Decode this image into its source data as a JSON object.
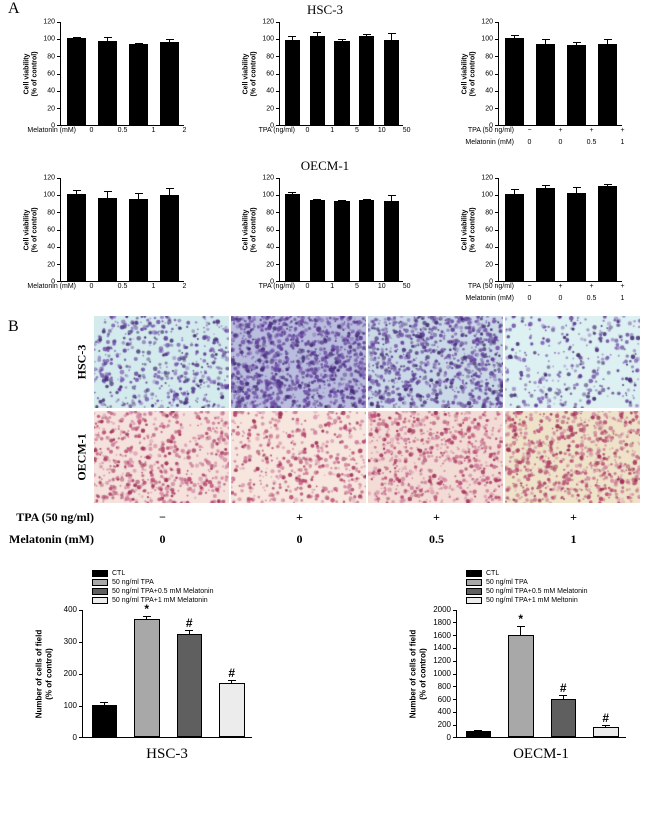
{
  "figure": {
    "panel_a_label": "A",
    "panel_b_label": "B",
    "hsc3_title": "HSC-3",
    "oecm1_title": "OECM-1"
  },
  "panel_b": {
    "row_labels": [
      "HSC-3",
      "OECM-1"
    ],
    "tpa_row": {
      "label": "TPA (50 ng/ml)",
      "cells": [
        "−",
        "+",
        "+",
        "+"
      ]
    },
    "melatonin_row": {
      "label": "Melatonin (mM)",
      "cells": [
        "0",
        "0",
        "0.5",
        "1"
      ]
    }
  },
  "micrographs": {
    "rows": [
      {
        "name": "HSC-3",
        "dot_colors": [
          "#5c3a96",
          "#7a57b0",
          "#3f2a6e"
        ],
        "cells": [
          {
            "bg": "#d4ebee",
            "count": 520
          },
          {
            "bg": "#cfd9ee",
            "count": 1150,
            "overlay": "rgba(90,60,150,0.18)"
          },
          {
            "bg": "#d4e7ee",
            "count": 920,
            "overlay": "rgba(90,60,150,0.08)"
          },
          {
            "bg": "#ddf0f2",
            "count": 330
          }
        ]
      },
      {
        "name": "OECM-1",
        "dot_colors": [
          "#b9476f",
          "#a03358",
          "#d084a0"
        ],
        "cells": [
          {
            "bg": "#f5e2dc",
            "count": 620
          },
          {
            "bg": "#f7e6de",
            "count": 480
          },
          {
            "bg": "#f3dcd6",
            "count": 660
          },
          {
            "bg": "#eee3c8",
            "count": 730
          }
        ]
      }
    ]
  },
  "chart_data": [
    {
      "id": "hsc3-melatonin-viability",
      "type": "bar",
      "group": "HSC-3",
      "ylabel": "Cell viability\n(% of control)",
      "ylim": [
        0,
        120
      ],
      "ystep": 20,
      "values": [
        100,
        97,
        93,
        96
      ],
      "errors": [
        2,
        5,
        2,
        3
      ],
      "bar_color": "#000000",
      "xrows": [
        {
          "label": "Melatonin (mM)",
          "cells": [
            "0",
            "0.5",
            "1",
            "2"
          ]
        }
      ]
    },
    {
      "id": "hsc3-tpa-viability",
      "type": "bar",
      "group": "HSC-3",
      "ylabel": "Cell viability\n(% of control)",
      "ylim": [
        0,
        120
      ],
      "ystep": 20,
      "values": [
        98,
        103,
        97,
        103,
        98
      ],
      "errors": [
        5,
        4,
        2,
        2,
        8
      ],
      "bar_color": "#000000",
      "xrows": [
        {
          "label": "TPA (ng/ml)",
          "cells": [
            "0",
            "1",
            "5",
            "10",
            "50"
          ]
        }
      ]
    },
    {
      "id": "hsc3-tpa-melatonin-viability",
      "type": "bar",
      "group": "HSC-3",
      "ylabel": "Cell viability\n(% of control)",
      "ylim": [
        0,
        120
      ],
      "ystep": 20,
      "values": [
        100,
        93,
        92,
        94
      ],
      "errors": [
        4,
        6,
        4,
        5
      ],
      "bar_color": "#000000",
      "xrows": [
        {
          "label": "TPA (50 ng/ml)",
          "cells": [
            "−",
            "+",
            "+",
            "+"
          ]
        },
        {
          "label": "Melatonin (mM)",
          "cells": [
            "0",
            "0",
            "0.5",
            "1"
          ]
        }
      ]
    },
    {
      "id": "oecm1-melatonin-viability",
      "type": "bar",
      "group": "OECM-1",
      "ylabel": "Cell viability\n(% of control)",
      "ylim": [
        0,
        120
      ],
      "ystep": 20,
      "values": [
        100,
        96,
        95,
        99
      ],
      "errors": [
        5,
        8,
        7,
        8
      ],
      "bar_color": "#000000",
      "xrows": [
        {
          "label": "Melatonin (mM)",
          "cells": [
            "0",
            "0.5",
            "1",
            "2"
          ]
        }
      ]
    },
    {
      "id": "oecm1-tpa-viability",
      "type": "bar",
      "group": "OECM-1",
      "ylabel": "Cell viability\n(% of control)",
      "ylim": [
        0,
        120
      ],
      "ystep": 20,
      "values": [
        100,
        93,
        92,
        93,
        92
      ],
      "errors": [
        3,
        2,
        2,
        2,
        7
      ],
      "bar_color": "#000000",
      "xrows": [
        {
          "label": "TPA (ng/ml)",
          "cells": [
            "0",
            "1",
            "5",
            "10",
            "50"
          ]
        }
      ]
    },
    {
      "id": "oecm1-tpa-melatonin-viability",
      "type": "bar",
      "group": "OECM-1",
      "ylabel": "Cell viability\n(% of control)",
      "ylim": [
        0,
        120
      ],
      "ystep": 20,
      "values": [
        100,
        107,
        101,
        110
      ],
      "errors": [
        6,
        4,
        7,
        2
      ],
      "bar_color": "#000000",
      "xrows": [
        {
          "label": "TPA (50 ng/ml)",
          "cells": [
            "−",
            "+",
            "+",
            "+"
          ]
        },
        {
          "label": "Melatonin (mM)",
          "cells": [
            "0",
            "0",
            "0.5",
            "1"
          ]
        }
      ]
    },
    {
      "id": "hsc3-migration",
      "type": "bar",
      "title": "HSC-3",
      "ylabel": "Number of cells of field\n(% of control)",
      "ylim": [
        0,
        400
      ],
      "ystep": 100,
      "values": [
        100,
        370,
        322,
        170
      ],
      "errors": [
        9,
        7,
        12,
        8
      ],
      "sig": [
        "",
        "*",
        "#",
        "#"
      ],
      "bar_colors": [
        "#000000",
        "#a8a8a8",
        "#5f5f5f",
        "#ececec"
      ],
      "legend": [
        "CTL",
        "50 ng/ml TPA",
        "50 ng/ml TPA+0.5 mM Melatonin",
        "50 ng/ml TPA+1 mM Melatonin"
      ],
      "xrows": []
    },
    {
      "id": "oecm1-migration",
      "type": "bar",
      "title": "OECM-1",
      "ylabel": "Number of cells of field\n(% of control)",
      "ylim": [
        0,
        2000
      ],
      "ystep": 200,
      "values": [
        100,
        1600,
        600,
        150
      ],
      "errors": [
        15,
        130,
        60,
        40
      ],
      "sig": [
        "",
        "*",
        "#",
        "#"
      ],
      "bar_colors": [
        "#000000",
        "#a8a8a8",
        "#5f5f5f",
        "#ececec"
      ],
      "legend": [
        "CTL",
        "50 ng/ml TPA",
        "50 ng/ml TPA+0.5 mM Melatonin",
        "50 ng/ml TPA+1 mM Meltonin"
      ],
      "xrows": []
    }
  ]
}
